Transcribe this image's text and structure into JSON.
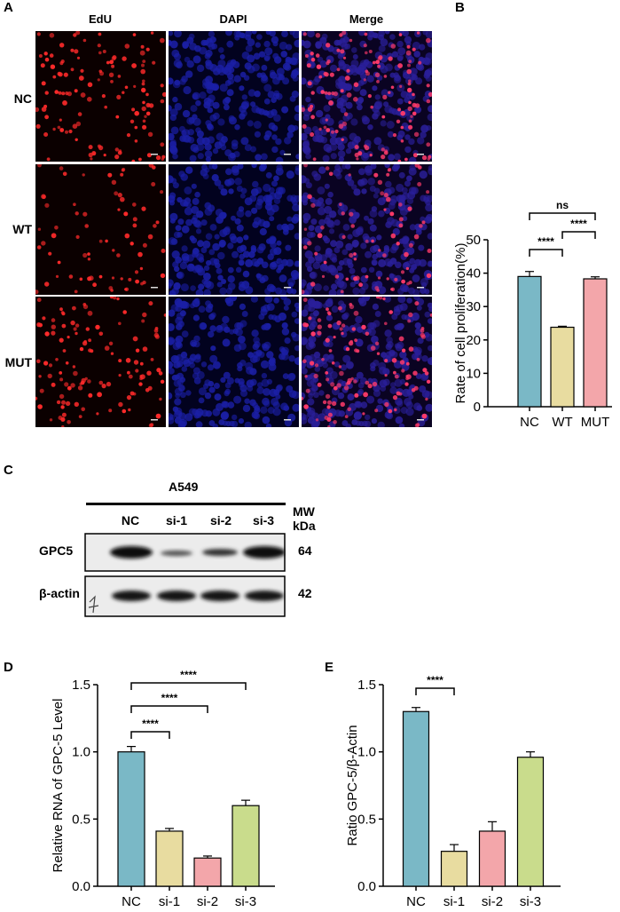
{
  "panel_a": {
    "letter": "A",
    "columns": [
      "EdU",
      "DAPI",
      "Merge"
    ],
    "rows": [
      "NC",
      "WT",
      "MUT"
    ]
  },
  "panel_c": {
    "letter": "C",
    "cell_line": "A549",
    "lanes": [
      "NC",
      "si-1",
      "si-2",
      "si-3"
    ],
    "mw_header": [
      "MW",
      "kDa"
    ],
    "blots": [
      {
        "name": "GPC5",
        "mw": "64"
      },
      {
        "name": "β-actin",
        "mw": "42"
      }
    ]
  },
  "chart_data": [
    {
      "panel": "B",
      "type": "bar",
      "categories": [
        "NC",
        "WT",
        "MUT"
      ],
      "values": [
        39,
        23.8,
        38.3
      ],
      "errors": [
        1.5,
        0.3,
        0.6
      ],
      "colors": [
        "#7ab8c6",
        "#e8dca0",
        "#f3a6aa"
      ],
      "ylabel": "Rate of cell proliferation(%)",
      "ylim": [
        0,
        50
      ],
      "yticks": [
        "0",
        "10",
        "20",
        "30",
        "40",
        "50"
      ],
      "significance": [
        {
          "from": 0,
          "to": 1,
          "label": "****"
        },
        {
          "from": 1,
          "to": 2,
          "label": "****"
        },
        {
          "from": 0,
          "to": 2,
          "label": "ns"
        }
      ]
    },
    {
      "panel": "D",
      "type": "bar",
      "categories": [
        "NC",
        "si-1",
        "si-2",
        "si-3"
      ],
      "values": [
        1.0,
        0.41,
        0.21,
        0.6
      ],
      "errors": [
        0.04,
        0.02,
        0.015,
        0.04
      ],
      "colors": [
        "#7ab8c6",
        "#e8dca0",
        "#f3a6aa",
        "#c9dc8c"
      ],
      "ylabel": "Relative RNA of GPC-5  Level",
      "ylim": [
        0,
        1.5
      ],
      "yticks": [
        "0.0",
        "0.5",
        "1.0",
        "1.5"
      ],
      "significance": [
        {
          "from": 0,
          "to": 1,
          "label": "****"
        },
        {
          "from": 0,
          "to": 2,
          "label": "****"
        },
        {
          "from": 0,
          "to": 3,
          "label": "****"
        }
      ]
    },
    {
      "panel": "E",
      "type": "bar",
      "categories": [
        "NC",
        "si-1",
        "si-2",
        "si-3"
      ],
      "values": [
        1.3,
        0.26,
        0.41,
        0.96
      ],
      "errors": [
        0.03,
        0.05,
        0.07,
        0.04
      ],
      "colors": [
        "#7ab8c6",
        "#e8dca0",
        "#f3a6aa",
        "#c9dc8c"
      ],
      "ylabel": "Ratio GPC-5/β-Actin",
      "ylim": [
        0,
        1.5
      ],
      "yticks": [
        "0.0",
        "0.5",
        "1.0",
        "1.5"
      ],
      "significance": [
        {
          "from": 0,
          "to": 1,
          "label": "****"
        },
        {
          "from": 0,
          "to": 2,
          "label": "****"
        },
        {
          "from": 0,
          "to": 3,
          "label": "****"
        }
      ]
    }
  ]
}
